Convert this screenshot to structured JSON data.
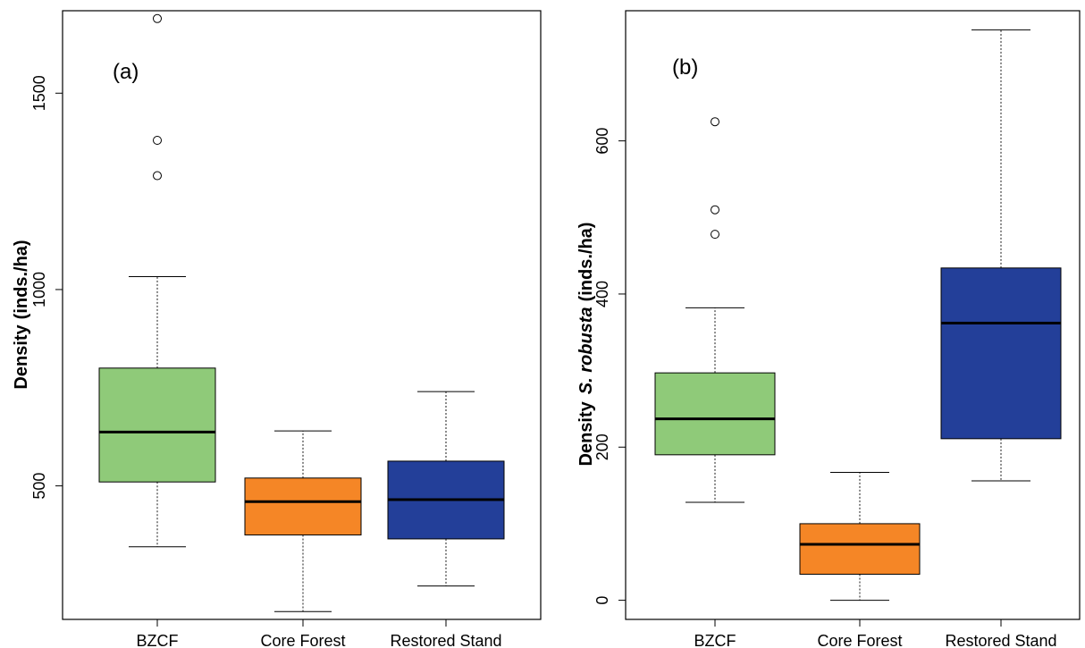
{
  "chart_data": [
    {
      "type": "box",
      "panel_label": "(a)",
      "ylabel": {
        "main": "Density",
        "unit": "(inds./ha)"
      },
      "categories": [
        "BZCF",
        "Core Forest",
        "Restored Stand"
      ],
      "yticks": [
        500,
        1000,
        1500
      ],
      "ylim": [
        160,
        1710
      ],
      "boxes": [
        {
          "category": "BZCF",
          "color": "#8fca79",
          "whisker_low": 345,
          "q1": 510,
          "median": 637,
          "q3": 800,
          "whisker_high": 1033,
          "outliers": [
            1690,
            1380,
            1290
          ]
        },
        {
          "category": "Core Forest",
          "color": "#f58626",
          "whisker_low": 180,
          "q1": 375,
          "median": 460,
          "q3": 520,
          "whisker_high": 640,
          "outliers": []
        },
        {
          "category": "Restored Stand",
          "color": "#233f99",
          "whisker_low": 245,
          "q1": 365,
          "median": 465,
          "q3": 563,
          "whisker_high": 740,
          "outliers": []
        }
      ]
    },
    {
      "type": "box",
      "panel_label": "(b)",
      "ylabel": {
        "main": "Density",
        "italic": "S. robusta",
        "unit": "(inds./ha)"
      },
      "categories": [
        "BZCF",
        "Core Forest",
        "Restored Stand"
      ],
      "yticks": [
        0,
        200,
        400,
        600
      ],
      "ylim": [
        -25,
        770
      ],
      "boxes": [
        {
          "category": "BZCF",
          "color": "#8fca79",
          "whisker_low": 128,
          "q1": 190,
          "median": 237,
          "q3": 297,
          "whisker_high": 382,
          "outliers": [
            625,
            510,
            478
          ]
        },
        {
          "category": "Core Forest",
          "color": "#f58626",
          "whisker_low": 0,
          "q1": 34,
          "median": 73,
          "q3": 100,
          "whisker_high": 167,
          "outliers": []
        },
        {
          "category": "Restored Stand",
          "color": "#233f99",
          "whisker_low": 156,
          "q1": 211,
          "median": 362,
          "q3": 434,
          "whisker_high": 745,
          "outliers": []
        }
      ]
    }
  ]
}
